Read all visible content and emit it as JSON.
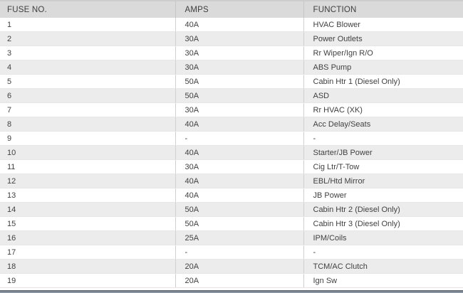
{
  "table": {
    "headers": {
      "fuse_no": "FUSE NO.",
      "amps": "AMPS",
      "function": "FUNCTION"
    },
    "rows": [
      {
        "fuse": "1",
        "amps": "40A",
        "function": "HVAC Blower"
      },
      {
        "fuse": "2",
        "amps": "30A",
        "function": "Power Outlets"
      },
      {
        "fuse": "3",
        "amps": "30A",
        "function": "Rr Wiper/Ign R/O"
      },
      {
        "fuse": "4",
        "amps": "30A",
        "function": "ABS Pump"
      },
      {
        "fuse": "5",
        "amps": "50A",
        "function": "Cabin Htr 1 (Diesel Only)"
      },
      {
        "fuse": "6",
        "amps": "50A",
        "function": "ASD"
      },
      {
        "fuse": "7",
        "amps": "30A",
        "function": "Rr HVAC (XK)"
      },
      {
        "fuse": "8",
        "amps": "40A",
        "function": "Acc Delay/Seats"
      },
      {
        "fuse": "9",
        "amps": "-",
        "function": "-"
      },
      {
        "fuse": "10",
        "amps": "40A",
        "function": "Starter/JB Power"
      },
      {
        "fuse": "11",
        "amps": "30A",
        "function": "Cig Ltr/T-Tow"
      },
      {
        "fuse": "12",
        "amps": "40A",
        "function": "EBL/Htd Mirror"
      },
      {
        "fuse": "13",
        "amps": "40A",
        "function": "JB Power"
      },
      {
        "fuse": "14",
        "amps": "50A",
        "function": "Cabin Htr 2 (Diesel Only)"
      },
      {
        "fuse": "15",
        "amps": "50A",
        "function": "Cabin Htr 3 (Diesel Only)"
      },
      {
        "fuse": "16",
        "amps": "25A",
        "function": "IPM/Coils"
      },
      {
        "fuse": "17",
        "amps": "-",
        "function": "-"
      },
      {
        "fuse": "18",
        "amps": "20A",
        "function": "TCM/AC Clutch"
      },
      {
        "fuse": "19",
        "amps": "20A",
        "function": "Ign Sw"
      }
    ]
  },
  "colors": {
    "header_bg": "#dadada",
    "header_top_border": "#cdcdcd",
    "row_bg": "#ffffff",
    "row_alt_bg": "#ececec",
    "row_border": "#e6e6e6",
    "column_divider": "#d0d0d0",
    "text": "#414141",
    "bottom_bar": "#6b7683"
  }
}
